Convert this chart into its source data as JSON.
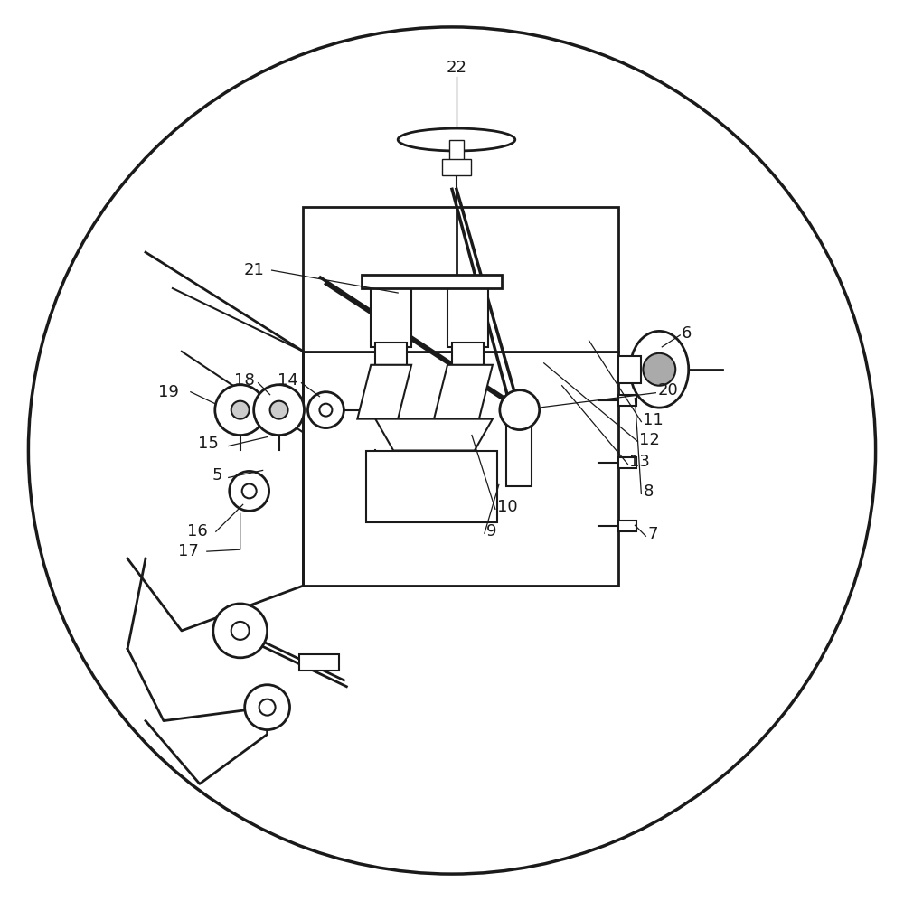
{
  "bg_color": "#ffffff",
  "line_color": "#1a1a1a",
  "line_width": 1.5,
  "figsize": [
    10.0,
    9.97
  ],
  "dpi": 100
}
